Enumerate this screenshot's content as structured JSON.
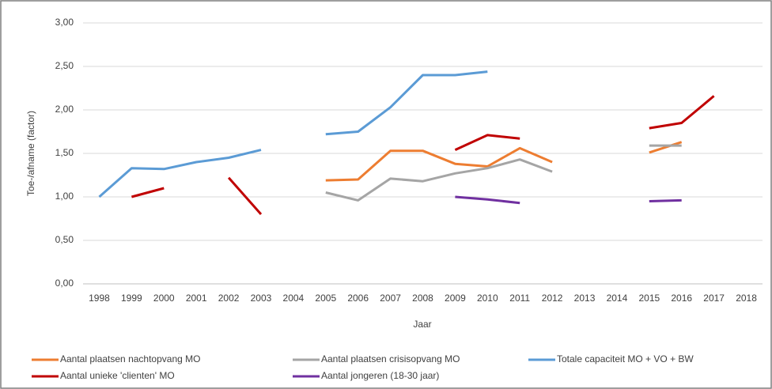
{
  "chart_data": {
    "type": "line",
    "ylabel": "Toe-/afname (factor)",
    "xlabel": "Jaar",
    "categories": [
      "1998",
      "1999",
      "2000",
      "2001",
      "2002",
      "2003",
      "2004",
      "2005",
      "2006",
      "2007",
      "2008",
      "2009",
      "2010",
      "2011",
      "2012",
      "2013",
      "2014",
      "2015",
      "2016",
      "2017",
      "2018"
    ],
    "series": [
      {
        "name": "Aantal plaatsen nachtopvang MO",
        "color": "#ed7d31",
        "values": [
          null,
          null,
          null,
          null,
          null,
          null,
          null,
          1.19,
          1.2,
          1.53,
          1.53,
          1.38,
          1.35,
          1.56,
          1.4,
          null,
          null,
          1.51,
          1.63,
          null,
          null
        ]
      },
      {
        "name": "Aantal plaatsen crisisopvang MO",
        "color": "#a5a5a5",
        "values": [
          null,
          null,
          null,
          null,
          null,
          null,
          null,
          1.05,
          0.96,
          1.21,
          1.18,
          1.27,
          1.33,
          1.43,
          1.29,
          null,
          null,
          1.59,
          1.59,
          null,
          null
        ]
      },
      {
        "name": "Totale capaciteit MO + VO + BW",
        "color": "#5b9bd5",
        "values": [
          1.0,
          1.33,
          1.32,
          1.4,
          1.45,
          1.54,
          null,
          1.72,
          1.75,
          2.03,
          2.4,
          2.4,
          2.44,
          null,
          null,
          null,
          null,
          null,
          null,
          null,
          null
        ]
      },
      {
        "name": "Aantal unieke 'clienten' MO",
        "color": "#c00000",
        "values": [
          null,
          1.0,
          1.1,
          null,
          1.22,
          0.8,
          null,
          null,
          null,
          null,
          null,
          1.54,
          1.71,
          1.67,
          null,
          null,
          null,
          1.79,
          1.85,
          2.16,
          null
        ]
      },
      {
        "name": "Aantal jongeren (18-30 jaar)",
        "color": "#7030a0",
        "values": [
          null,
          null,
          null,
          null,
          null,
          null,
          null,
          null,
          null,
          null,
          null,
          1.0,
          0.97,
          0.93,
          null,
          null,
          null,
          0.95,
          0.96,
          null,
          null
        ]
      }
    ],
    "ylim": [
      0,
      3
    ],
    "yticks": [
      {
        "value": 0,
        "label": "0,00"
      },
      {
        "value": 0.5,
        "label": "0,50"
      },
      {
        "value": 1,
        "label": "1,00"
      },
      {
        "value": 1.5,
        "label": "1,50"
      },
      {
        "value": 2,
        "label": "2,00"
      },
      {
        "value": 2.5,
        "label": "2,50"
      },
      {
        "value": 3,
        "label": "3,00"
      }
    ],
    "grid": true
  }
}
